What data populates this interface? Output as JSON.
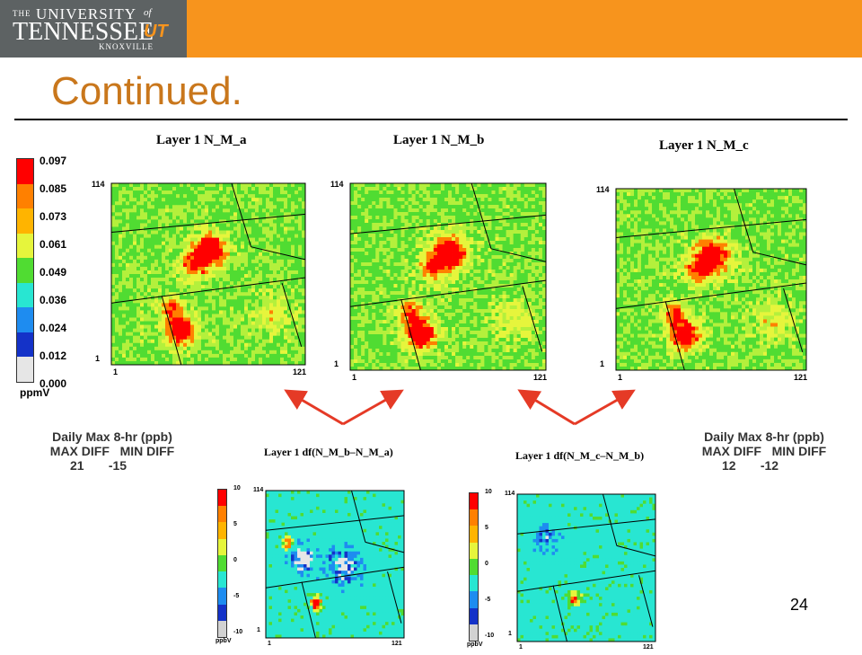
{
  "header": {
    "logo": {
      "the": "THE",
      "university": "UNIVERSITY",
      "of": "of",
      "tennessee": "TENNESSEE",
      "ut": "UT",
      "knoxville": "KNOXVILLE"
    }
  },
  "slide": {
    "title": "Continued.",
    "page_number": "24"
  },
  "colors": {
    "header_orange": "#f7941d",
    "logo_gray": "#5d6263",
    "title_orange": "#c9771c",
    "arrow_red": "#e53a26"
  },
  "legend": {
    "unit": "ppmV",
    "labels": [
      "0.097",
      "0.085",
      "0.073",
      "0.061",
      "0.049",
      "0.036",
      "0.024",
      "0.012",
      "0.000"
    ],
    "colors": [
      "#ff0000",
      "#ff8000",
      "#ffb400",
      "#e6f53c",
      "#50dc32",
      "#28e6d2",
      "#1e8cf0",
      "#1432c8",
      "#e6e6e6"
    ]
  },
  "diff_legend": {
    "unit": "ppbV",
    "labels": [
      "10",
      "5",
      "0",
      "-5",
      "-10"
    ],
    "colors": [
      "#ff0000",
      "#ff8000",
      "#ffb400",
      "#e6f53c",
      "#50dc32",
      "#28e6d2",
      "#1e8cf0",
      "#1432c8",
      "#d2d2d2"
    ]
  },
  "maps": [
    {
      "title": "Layer 1 N_M_a",
      "y_max": "114",
      "y_min": "1",
      "x_min": "1",
      "x_max": "121"
    },
    {
      "title": "Layer 1  N_M_b",
      "y_max": "114",
      "y_min": "1",
      "x_min": "1",
      "x_max": "121"
    },
    {
      "title": "Layer 1 N_M_c",
      "y_max": "114",
      "y_min": "1",
      "x_min": "1",
      "x_max": "121"
    }
  ],
  "diff_maps": [
    {
      "title": "Layer 1  df(N_M_b–N_M_a)",
      "y_max": "114",
      "y_min": "1",
      "x_min": "1",
      "x_max": "121"
    },
    {
      "title": "Layer 1  df(N_M_c–N_M_b)",
      "y_max": "114",
      "y_min": "1",
      "x_min": "1",
      "x_max": "121"
    }
  ],
  "stats_left": {
    "heading": "Daily Max 8-hr (ppb)",
    "max_label": "MAX DIFF",
    "min_label": "MIN DIFF",
    "max_value": "21",
    "min_value": "-15"
  },
  "stats_right": {
    "heading": "Daily Max 8-hr (ppb)",
    "max_label": "MAX DIFF",
    "min_label": "MIN DIFF",
    "max_value": "12",
    "min_value": "-12"
  }
}
